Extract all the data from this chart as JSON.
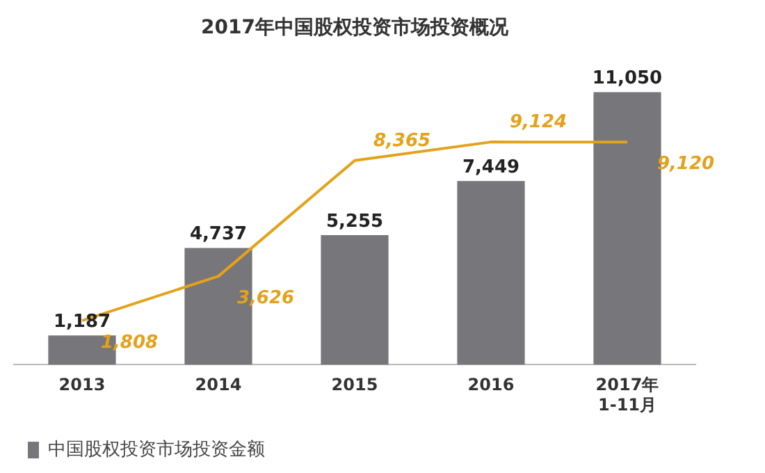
{
  "chart_data": {
    "type": "bar",
    "title": "2017年中国股权投资市场投资概况",
    "categories": [
      "2013",
      "2014",
      "2015",
      "2016",
      "2017年\n1-11月"
    ],
    "series": [
      {
        "name": "中国股权投资市场投资金额",
        "color": "#77767b",
        "values": [
          1187,
          4737,
          5255,
          7449,
          11050
        ],
        "value_labels": [
          "1,187",
          "4,737",
          "5,255",
          "7,449",
          "11,050"
        ]
      },
      {
        "type": "line",
        "axis": "y2",
        "color": "#e3a21a",
        "values": [
          1808,
          3626,
          8365,
          9124,
          9120
        ],
        "value_labels": [
          "1,808",
          "3,626",
          "8,365",
          "9,124",
          "9,120"
        ]
      }
    ],
    "legend": "bottom left",
    "grid": false
  }
}
